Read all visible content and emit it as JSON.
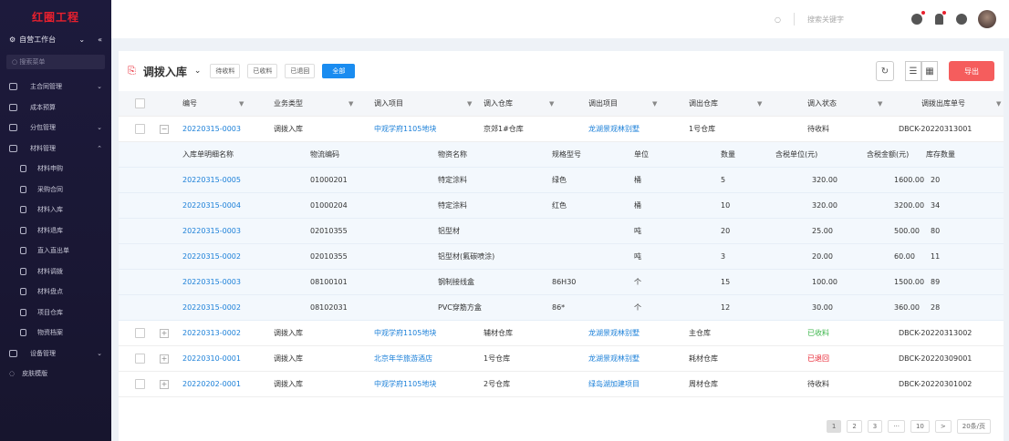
{
  "sidebar": {
    "logo": "红圈工程",
    "workspace": "自营工作台",
    "search_placeholder": "搜索菜单",
    "items": [
      {
        "label": "主合同管理",
        "arrow": "⌄"
      },
      {
        "label": "成本预算",
        "arrow": ""
      },
      {
        "label": "分包管理",
        "arrow": "⌄"
      },
      {
        "label": "材料管理",
        "arrow": "⌃"
      }
    ],
    "sub_items": [
      "材料申购",
      "采购合同",
      "材料入库",
      "材料退库",
      "直入直出单",
      "材料调拨",
      "材料盘点",
      "项目仓库",
      "物资档案"
    ],
    "bottom_items": [
      {
        "label": "设备管理",
        "arrow": "⌄"
      }
    ],
    "skin": "皮肤模版"
  },
  "header": {
    "search_placeholder": "搜索关键字"
  },
  "toolbar": {
    "title": "调拨入库",
    "filters": [
      "待收料",
      "已收料",
      "已退回",
      "全部"
    ],
    "active_filter": "全部",
    "export": "导出"
  },
  "table": {
    "columns": [
      "编号",
      "业务类型",
      "调入项目",
      "调入仓库",
      "调出项目",
      "调出仓库",
      "调入状态",
      "调拨出库单号"
    ],
    "rows": [
      {
        "id": "20220315-0003",
        "type": "调拨入库",
        "in_project": "中观学府1105地块",
        "in_wh": "京郊1#仓库",
        "out_project": "龙湖景观林别墅",
        "out_wh": "1号仓库",
        "status": "待收料",
        "out_no": "DBCK-20220313001",
        "expanded": true
      },
      {
        "id": "20220313-0002",
        "type": "调拨入库",
        "in_project": "中观学府1105地块",
        "in_wh": "辅材仓库",
        "out_project": "龙湖景观林别墅",
        "out_wh": "主仓库",
        "status": "已收料",
        "out_no": "DBCK-20220313002"
      },
      {
        "id": "20220310-0001",
        "type": "调拨入库",
        "in_project": "北京年华旅游酒店",
        "in_wh": "1号仓库",
        "out_project": "龙湖景观林别墅",
        "out_wh": "耗材仓库",
        "status": "已退回",
        "out_no": "DBCK-20220309001"
      },
      {
        "id": "20220202-0001",
        "type": "调拨入库",
        "in_project": "中观学府1105地块",
        "in_wh": "2号仓库",
        "out_project": "绿岛湖加建项目",
        "out_wh": "周材仓库",
        "status": "待收料",
        "out_no": "DBCK-20220301002"
      }
    ]
  },
  "detail": {
    "columns": [
      "入库单明细名称",
      "物流编码",
      "物资名称",
      "规格型号",
      "单位",
      "数量",
      "含税单位(元)",
      "含税金额(元)",
      "库存数量"
    ],
    "rows": [
      [
        "20220315-0005",
        "01000201",
        "特定涂料",
        "绿色",
        "桶",
        "5",
        "320.00",
        "1600.00",
        "20"
      ],
      [
        "20220315-0004",
        "01000204",
        "特定涂料",
        "红色",
        "桶",
        "10",
        "320.00",
        "3200.00",
        "34"
      ],
      [
        "20220315-0003",
        "02010355",
        "铝型材",
        "",
        "吨",
        "20",
        "25.00",
        "500.00",
        "80"
      ],
      [
        "20220315-0002",
        "02010355",
        "铝型材(氟碳喷涂)",
        "",
        "吨",
        "3",
        "20.00",
        "60.00",
        "11"
      ],
      [
        "20220315-0003",
        "08100101",
        "钢制接线盒",
        "86H30",
        "个",
        "15",
        "100.00",
        "1500.00",
        "89"
      ],
      [
        "20220315-0002",
        "08102031",
        "PVC穿筋方盒",
        "86*",
        "个",
        "12",
        "30.00",
        "360.00",
        "28"
      ]
    ]
  },
  "status_colors": {
    "待收料": "#333333",
    "已收料": "#3bb54a",
    "已退回": "#e8202e"
  },
  "pagination": {
    "pages": [
      "1",
      "2",
      "3",
      "···",
      "10"
    ],
    "current": "1",
    "next": ">",
    "page_size": "20条/页"
  }
}
